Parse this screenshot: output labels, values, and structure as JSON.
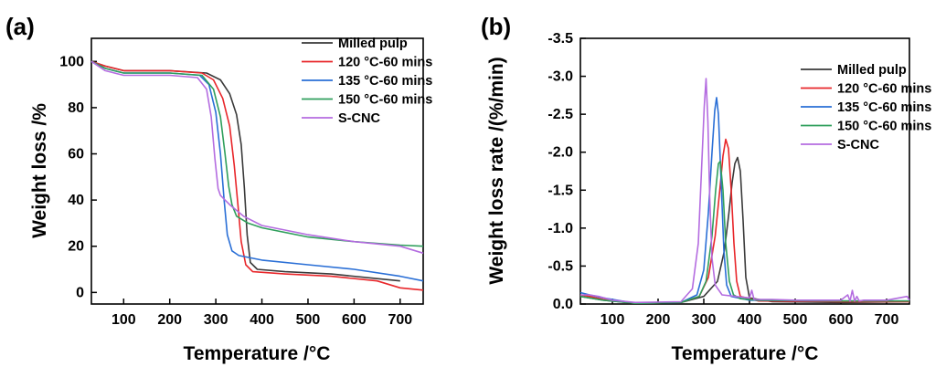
{
  "colors": {
    "milled": "#3a3a3a",
    "c120": "#e8262a",
    "c135": "#2a6fd6",
    "c150": "#2f9f5c",
    "scnc": "#b46ce0"
  },
  "chart_data": [
    {
      "panel": "(a)",
      "type": "line",
      "xlabel": "Temperature /°C",
      "ylabel": "Weight loss /%",
      "xlim": [
        30,
        750
      ],
      "ylim": [
        -5,
        110
      ],
      "xticks": [
        "100",
        "200",
        "300",
        "400",
        "500",
        "600",
        "700"
      ],
      "xtick_values": [
        100,
        200,
        300,
        400,
        500,
        600,
        700
      ],
      "yticks": [
        "0",
        "20",
        "40",
        "60",
        "80",
        "100"
      ],
      "ytick_values": [
        0,
        20,
        40,
        60,
        80,
        100
      ],
      "legend_position": "top-right",
      "series": [
        {
          "name": "Milled pulp",
          "color_key": "milled",
          "x": [
            30,
            60,
            100,
            200,
            280,
            310,
            330,
            345,
            355,
            362,
            368,
            375,
            390,
            450,
            550,
            650,
            700
          ],
          "y": [
            100,
            98,
            96,
            96,
            95,
            92,
            86,
            77,
            64,
            45,
            25,
            13,
            10,
            9,
            8,
            6,
            5
          ]
        },
        {
          "name": "120 °C-60 mins",
          "color_key": "c120",
          "x": [
            30,
            60,
            100,
            200,
            270,
            295,
            315,
            330,
            340,
            348,
            355,
            365,
            380,
            450,
            550,
            650,
            700,
            750
          ],
          "y": [
            100,
            98,
            96,
            96,
            95,
            92,
            84,
            72,
            55,
            38,
            22,
            12,
            9,
            8,
            7,
            5,
            2,
            1
          ]
        },
        {
          "name": "135 °C-60 mins",
          "color_key": "c135",
          "x": [
            30,
            60,
            100,
            200,
            265,
            285,
            300,
            310,
            318,
            325,
            335,
            350,
            400,
            500,
            600,
            700,
            750
          ],
          "y": [
            100,
            97,
            95,
            95,
            94,
            90,
            78,
            60,
            40,
            25,
            18,
            16,
            14,
            12,
            10,
            7,
            5
          ]
        },
        {
          "name": "150 °C-60 mins",
          "color_key": "c150",
          "x": [
            30,
            60,
            100,
            200,
            270,
            295,
            310,
            320,
            328,
            335,
            345,
            370,
            400,
            500,
            600,
            700,
            750
          ],
          "y": [
            100,
            97,
            95,
            95,
            94,
            88,
            76,
            60,
            46,
            38,
            33,
            30,
            28,
            24,
            22,
            20.5,
            20
          ]
        },
        {
          "name": "S-CNC",
          "color_key": "scnc",
          "x": [
            30,
            60,
            100,
            200,
            260,
            280,
            290,
            298,
            305,
            310,
            330,
            360,
            400,
            450,
            500,
            600,
            700,
            750
          ],
          "y": [
            100,
            96,
            94,
            94,
            93,
            88,
            76,
            58,
            45,
            42,
            38,
            33,
            29,
            27,
            25,
            22,
            20,
            17
          ]
        }
      ]
    },
    {
      "panel": "(b)",
      "type": "line",
      "xlabel": "Temperature /°C",
      "ylabel": "Weight loss rate /(%/min)",
      "xlim": [
        30,
        750
      ],
      "ylim": [
        0.0,
        -3.5
      ],
      "xticks": [
        "100",
        "200",
        "300",
        "400",
        "500",
        "600",
        "700"
      ],
      "xtick_values": [
        100,
        200,
        300,
        400,
        500,
        600,
        700
      ],
      "yticks": [
        "0.0",
        "-0.5",
        "-1.0",
        "-1.5",
        "-2.0",
        "-2.5",
        "-3.0",
        "-3.5"
      ],
      "ytick_values": [
        0.0,
        -0.5,
        -1.0,
        -1.5,
        -2.0,
        -2.5,
        -3.0,
        -3.5
      ],
      "legend_position": "top-right",
      "series": [
        {
          "name": "Milled pulp",
          "color_key": "milled",
          "x": [
            30,
            50,
            80,
            150,
            250,
            300,
            330,
            345,
            355,
            362,
            368,
            374,
            380,
            386,
            392,
            400,
            450,
            600,
            750
          ],
          "y": [
            -0.1,
            -0.08,
            -0.05,
            -0.01,
            -0.02,
            -0.1,
            -0.3,
            -0.7,
            -1.2,
            -1.6,
            -1.85,
            -1.93,
            -1.75,
            -1.1,
            -0.35,
            -0.08,
            -0.03,
            -0.02,
            -0.03
          ]
        },
        {
          "name": "120 °C-60 mins",
          "color_key": "c120",
          "x": [
            30,
            50,
            80,
            150,
            250,
            290,
            310,
            325,
            335,
            342,
            348,
            354,
            360,
            366,
            372,
            380,
            420,
            600,
            750
          ],
          "y": [
            -0.12,
            -0.1,
            -0.06,
            -0.01,
            -0.02,
            -0.1,
            -0.35,
            -0.9,
            -1.5,
            -1.95,
            -2.17,
            -2.05,
            -1.5,
            -0.8,
            -0.3,
            -0.1,
            -0.04,
            -0.03,
            -0.03
          ]
        },
        {
          "name": "135 °C-60 mins",
          "color_key": "c135",
          "x": [
            30,
            50,
            80,
            150,
            250,
            285,
            300,
            310,
            318,
            324,
            328,
            332,
            338,
            344,
            350,
            360,
            400,
            600,
            750
          ],
          "y": [
            -0.15,
            -0.12,
            -0.08,
            -0.01,
            -0.02,
            -0.12,
            -0.45,
            -1.2,
            -2.0,
            -2.55,
            -2.72,
            -2.5,
            -1.6,
            -0.7,
            -0.25,
            -0.1,
            -0.05,
            -0.04,
            -0.04
          ]
        },
        {
          "name": "150 °C-60 mins",
          "color_key": "c150",
          "x": [
            30,
            50,
            80,
            150,
            250,
            290,
            305,
            318,
            326,
            332,
            336,
            342,
            348,
            356,
            365,
            380,
            420,
            600,
            750
          ],
          "y": [
            -0.1,
            -0.08,
            -0.05,
            -0.01,
            -0.02,
            -0.1,
            -0.3,
            -0.9,
            -1.5,
            -1.85,
            -1.88,
            -1.5,
            -0.8,
            -0.3,
            -0.12,
            -0.07,
            -0.05,
            -0.04,
            -0.04
          ]
        },
        {
          "name": "S-CNC",
          "color_key": "scnc",
          "x": [
            30,
            50,
            70,
            100,
            150,
            250,
            275,
            288,
            296,
            301,
            305,
            309,
            313,
            318,
            325,
            340,
            370,
            400,
            405,
            410,
            450,
            500,
            600,
            615,
            620,
            625,
            630,
            635,
            640,
            650,
            700,
            745,
            750
          ],
          "y": [
            -0.12,
            -0.12,
            -0.1,
            -0.05,
            -0.02,
            -0.03,
            -0.2,
            -0.8,
            -1.9,
            -2.6,
            -2.97,
            -2.4,
            -1.4,
            -0.6,
            -0.25,
            -0.12,
            -0.1,
            -0.08,
            -0.18,
            -0.06,
            -0.06,
            -0.05,
            -0.05,
            -0.12,
            -0.04,
            -0.18,
            -0.04,
            -0.1,
            -0.04,
            -0.05,
            -0.05,
            -0.1,
            -0.05
          ]
        }
      ]
    }
  ]
}
